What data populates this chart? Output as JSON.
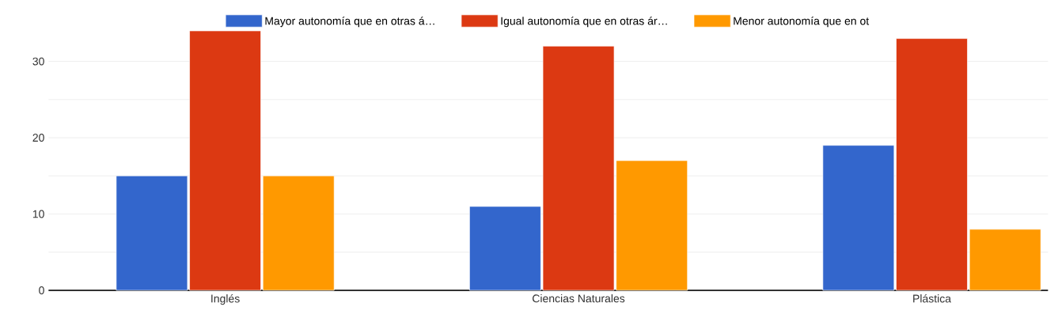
{
  "chart_data": {
    "type": "bar",
    "categories": [
      "Inglés",
      "Ciencias Naturales",
      "Plástica"
    ],
    "series": [
      {
        "name": "Mayor autonomía que en otras á…",
        "color": "#3366cc",
        "values": [
          15,
          11,
          19
        ]
      },
      {
        "name": "Igual autonomía que en otras ár…",
        "color": "#dc3912",
        "values": [
          34,
          32,
          33
        ]
      },
      {
        "name": "Menor autonomía que en ot",
        "color": "#ff9900",
        "values": [
          15,
          17,
          8
        ]
      }
    ],
    "ylim": [
      0,
      34
    ],
    "yticks": [
      0,
      {
        "value": 5,
        "label": null
      },
      10,
      {
        "value": 15,
        "label": null
      },
      20,
      {
        "value": 25,
        "label": null
      },
      30
    ],
    "grid": "y",
    "legend": "top"
  }
}
